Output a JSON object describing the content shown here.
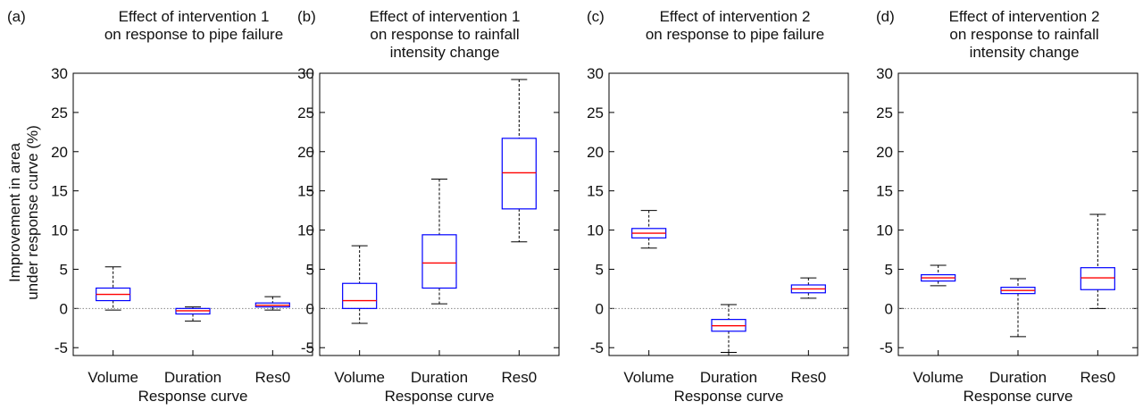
{
  "figure": {
    "ylabel_line1": "Improvement in area",
    "ylabel_line2": "under response curve (%)"
  },
  "colors": {
    "box_edge": "#0000ff",
    "median": "#ff0000",
    "whisker": "#000000",
    "zero_line": "#888888"
  },
  "chart_data": [
    {
      "type": "boxplot",
      "panel_label": "(a)",
      "title_lines": [
        "Effect of intervention 1",
        "on response to pipe failure"
      ],
      "xlabel": "Response curve",
      "categories": [
        "Volume",
        "Duration",
        "Res0"
      ],
      "ylim": [
        -6,
        30
      ],
      "yticks": [
        -5,
        0,
        5,
        10,
        15,
        20,
        25,
        30
      ],
      "reference_line": 0,
      "boxes": [
        {
          "min": -0.2,
          "q1": 1.0,
          "median": 1.8,
          "q3": 2.6,
          "max": 5.3
        },
        {
          "min": -1.6,
          "q1": -0.7,
          "median": -0.3,
          "q3": 0.0,
          "max": 0.2
        },
        {
          "min": -0.2,
          "q1": 0.2,
          "median": 0.4,
          "q3": 0.7,
          "max": 1.5
        }
      ]
    },
    {
      "type": "boxplot",
      "panel_label": "(b)",
      "title_lines": [
        "Effect of intervention 1",
        "on response to rainfall",
        "intensity change"
      ],
      "xlabel": "Response curve",
      "categories": [
        "Volume",
        "Duration",
        "Res0"
      ],
      "ylim": [
        -6,
        30
      ],
      "yticks": [
        -5,
        0,
        5,
        10,
        15,
        20,
        25,
        30
      ],
      "reference_line": 0,
      "boxes": [
        {
          "min": -1.9,
          "q1": 0.0,
          "median": 1.0,
          "q3": 3.2,
          "max": 8.0
        },
        {
          "min": 0.6,
          "q1": 2.6,
          "median": 5.8,
          "q3": 9.4,
          "max": 16.5
        },
        {
          "min": 8.5,
          "q1": 12.7,
          "median": 17.3,
          "q3": 21.7,
          "max": 29.2
        }
      ]
    },
    {
      "type": "boxplot",
      "panel_label": "(c)",
      "title_lines": [
        "Effect of intervention 2",
        "on response to pipe failure"
      ],
      "xlabel": "Response curve",
      "categories": [
        "Volume",
        "Duration",
        "Res0"
      ],
      "ylim": [
        -6,
        30
      ],
      "yticks": [
        -5,
        0,
        5,
        10,
        15,
        20,
        25,
        30
      ],
      "reference_line": 0,
      "boxes": [
        {
          "min": 7.7,
          "q1": 9.0,
          "median": 9.6,
          "q3": 10.2,
          "max": 12.5
        },
        {
          "min": -5.6,
          "q1": -2.9,
          "median": -2.2,
          "q3": -1.4,
          "max": 0.5
        },
        {
          "min": 1.3,
          "q1": 2.0,
          "median": 2.5,
          "q3": 3.0,
          "max": 3.9
        }
      ]
    },
    {
      "type": "boxplot",
      "panel_label": "(d)",
      "title_lines": [
        "Effect of intervention 2",
        "on response to rainfall",
        "intensity change"
      ],
      "xlabel": "Response curve",
      "categories": [
        "Volume",
        "Duration",
        "Res0"
      ],
      "ylim": [
        -6,
        30
      ],
      "yticks": [
        -5,
        0,
        5,
        10,
        15,
        20,
        25,
        30
      ],
      "reference_line": 0,
      "boxes": [
        {
          "min": 2.9,
          "q1": 3.5,
          "median": 3.9,
          "q3": 4.3,
          "max": 5.5
        },
        {
          "min": -3.6,
          "q1": 1.9,
          "median": 2.3,
          "q3": 2.7,
          "max": 3.8
        },
        {
          "min": 0.0,
          "q1": 2.4,
          "median": 3.9,
          "q3": 5.2,
          "max": 12.0
        }
      ]
    }
  ]
}
